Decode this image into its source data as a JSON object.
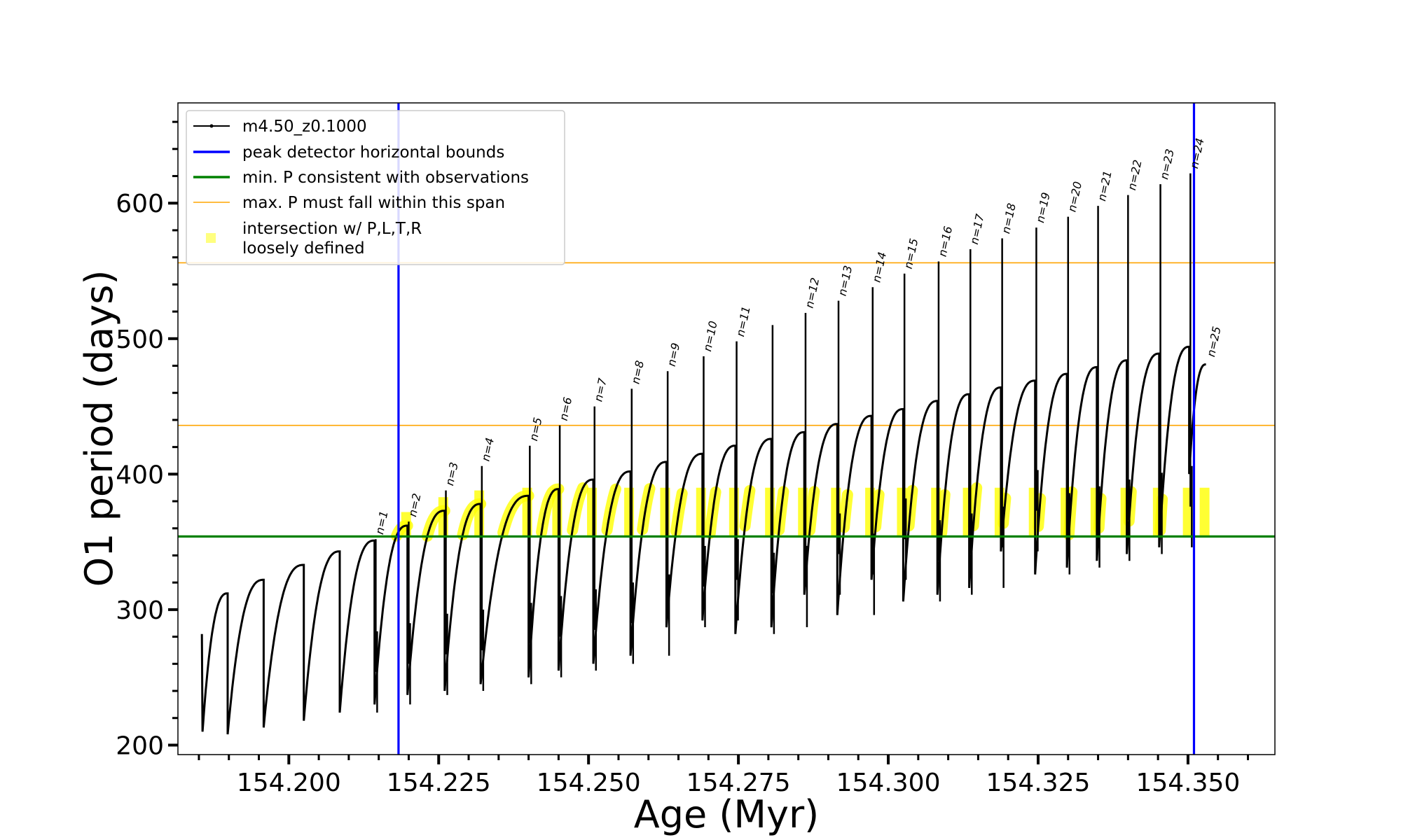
{
  "chart_data": {
    "type": "line",
    "xlabel": "Age (Myr)",
    "ylabel": "O1 period (days)",
    "xlim": [
      154.1815,
      154.3645
    ],
    "ylim": [
      193,
      674
    ],
    "x_ticks": [
      154.2,
      154.225,
      154.25,
      154.275,
      154.3,
      154.325,
      154.35
    ],
    "x_tick_labels": [
      "154.200",
      "154.225",
      "154.250",
      "154.275",
      "154.300",
      "154.325",
      "154.350"
    ],
    "x_minor_step": 0.005,
    "y_ticks": [
      200,
      300,
      400,
      500,
      600
    ],
    "y_tick_labels": [
      "200",
      "300",
      "400",
      "500",
      "600"
    ],
    "y_minor_step": 20,
    "grid": false,
    "legend": {
      "placement": "top-left",
      "entries": [
        {
          "label": "m4.50_z0.1000",
          "kind": "line-marker",
          "color": "#000000"
        },
        {
          "label": "peak detector horizontal bounds",
          "kind": "line",
          "color": "#0000ff"
        },
        {
          "label": "min. P consistent with observations",
          "kind": "line",
          "color": "#008000"
        },
        {
          "label": "max. P must fall within this span",
          "kind": "line",
          "color": "#ffa500"
        },
        {
          "label": "intersection w/ P,L,T,R",
          "label2": "loosely defined",
          "kind": "marker",
          "color": "#ffff00"
        }
      ]
    },
    "vertical_lines": [
      154.2183,
      154.351
    ],
    "min_period": 354,
    "max_period_span": [
      436,
      556
    ],
    "series_color": "#000000",
    "highlight_color": "#ffff00",
    "pulses": [
      {
        "n": "",
        "start": 154.1855,
        "end": 154.1898,
        "start_y": 282,
        "min_y": 203,
        "max_y": 312
      },
      {
        "n": "",
        "start": 154.1898,
        "end": 154.1958,
        "min_y": 208,
        "max_y": 322
      },
      {
        "n": "",
        "start": 154.1958,
        "end": 154.2025,
        "min_y": 213,
        "max_y": 333
      },
      {
        "n": "",
        "start": 154.2025,
        "end": 154.2085,
        "min_y": 218,
        "max_y": 343
      },
      {
        "n": "n=1",
        "start": 154.2085,
        "end": 154.2143,
        "min_y": 224,
        "max_y": 351
      },
      {
        "n": "n=2",
        "start": 154.2143,
        "end": 154.2198,
        "min_y": 230,
        "max_y": 362
      },
      {
        "n": "n=3",
        "start": 154.2198,
        "end": 154.226,
        "min_y": 237,
        "max_y": 373
      },
      {
        "n": "n=4",
        "start": 154.226,
        "end": 154.232,
        "min_y": 240,
        "max_y": 378
      },
      {
        "n": "n=5",
        "start": 154.232,
        "end": 154.24,
        "min_y": 245,
        "max_y": 384
      },
      {
        "n": "n=6",
        "start": 154.24,
        "end": 154.245,
        "min_y": 250,
        "max_y": 389
      },
      {
        "n": "n=7",
        "start": 154.245,
        "end": 154.2508,
        "min_y": 255,
        "max_y": 396
      },
      {
        "n": "n=8",
        "start": 154.2508,
        "end": 154.257,
        "min_y": 260,
        "max_y": 402
      },
      {
        "n": "n=9",
        "start": 154.257,
        "end": 154.263,
        "min_y": 266,
        "max_y": 409
      },
      {
        "n": "n=10",
        "start": 154.263,
        "end": 154.269,
        "min_y": 287,
        "max_y": 415
      },
      {
        "n": "n=11",
        "start": 154.269,
        "end": 154.2745,
        "min_y": 292,
        "max_y": 421
      },
      {
        "n": "",
        "start": 154.2745,
        "end": 154.2805,
        "min_y": 282,
        "max_y": 426
      },
      {
        "n": "n=12",
        "start": 154.2805,
        "end": 154.286,
        "min_y": 287,
        "max_y": 431
      },
      {
        "n": "n=13",
        "start": 154.286,
        "end": 154.2915,
        "min_y": 311,
        "max_y": 437
      },
      {
        "n": "n=14",
        "start": 154.2915,
        "end": 154.2972,
        "min_y": 296,
        "max_y": 443
      },
      {
        "n": "n=15",
        "start": 154.2972,
        "end": 154.3025,
        "min_y": 322,
        "max_y": 448
      },
      {
        "n": "n=16",
        "start": 154.3025,
        "end": 154.3082,
        "min_y": 306,
        "max_y": 454
      },
      {
        "n": "n=17",
        "start": 154.3082,
        "end": 154.3135,
        "min_y": 311,
        "max_y": 459
      },
      {
        "n": "n=18",
        "start": 154.3135,
        "end": 154.3188,
        "min_y": 316,
        "max_y": 464
      },
      {
        "n": "n=19",
        "start": 154.3188,
        "end": 154.3245,
        "min_y": 343,
        "max_y": 469
      },
      {
        "n": "n=20",
        "start": 154.3245,
        "end": 154.3298,
        "min_y": 326,
        "max_y": 474
      },
      {
        "n": "n=21",
        "start": 154.3298,
        "end": 154.3348,
        "min_y": 331,
        "max_y": 479
      },
      {
        "n": "n=22",
        "start": 154.3348,
        "end": 154.3398,
        "min_y": 336,
        "max_y": 484
      },
      {
        "n": "n=23",
        "start": 154.3398,
        "end": 154.3452,
        "min_y": 341,
        "max_y": 489
      },
      {
        "n": "n=24",
        "start": 154.3452,
        "end": 154.3502,
        "min_y": 346,
        "max_y": 494
      },
      {
        "n": "n=25",
        "start": 154.3502,
        "end": 154.353,
        "min_y": 400,
        "max_y": 481
      }
    ],
    "flash_peaks": [
      {
        "x": 154.2145,
        "y": 352
      },
      {
        "x": 154.22,
        "y": 365
      },
      {
        "x": 154.2262,
        "y": 388
      },
      {
        "x": 154.2322,
        "y": 406
      },
      {
        "x": 154.2402,
        "y": 421
      },
      {
        "x": 154.2452,
        "y": 436
      },
      {
        "x": 154.251,
        "y": 450
      },
      {
        "x": 154.2572,
        "y": 463
      },
      {
        "x": 154.2632,
        "y": 476
      },
      {
        "x": 154.2692,
        "y": 487
      },
      {
        "x": 154.2747,
        "y": 498
      },
      {
        "x": 154.2807,
        "y": 510
      },
      {
        "x": 154.2862,
        "y": 519
      },
      {
        "x": 154.2917,
        "y": 528
      },
      {
        "x": 154.2974,
        "y": 538
      },
      {
        "x": 154.3027,
        "y": 548
      },
      {
        "x": 154.3084,
        "y": 557
      },
      {
        "x": 154.3137,
        "y": 566
      },
      {
        "x": 154.319,
        "y": 574
      },
      {
        "x": 154.3247,
        "y": 582
      },
      {
        "x": 154.33,
        "y": 590
      },
      {
        "x": 154.335,
        "y": 598
      },
      {
        "x": 154.34,
        "y": 606
      },
      {
        "x": 154.3454,
        "y": 614
      },
      {
        "x": 154.3504,
        "y": 622
      }
    ]
  }
}
